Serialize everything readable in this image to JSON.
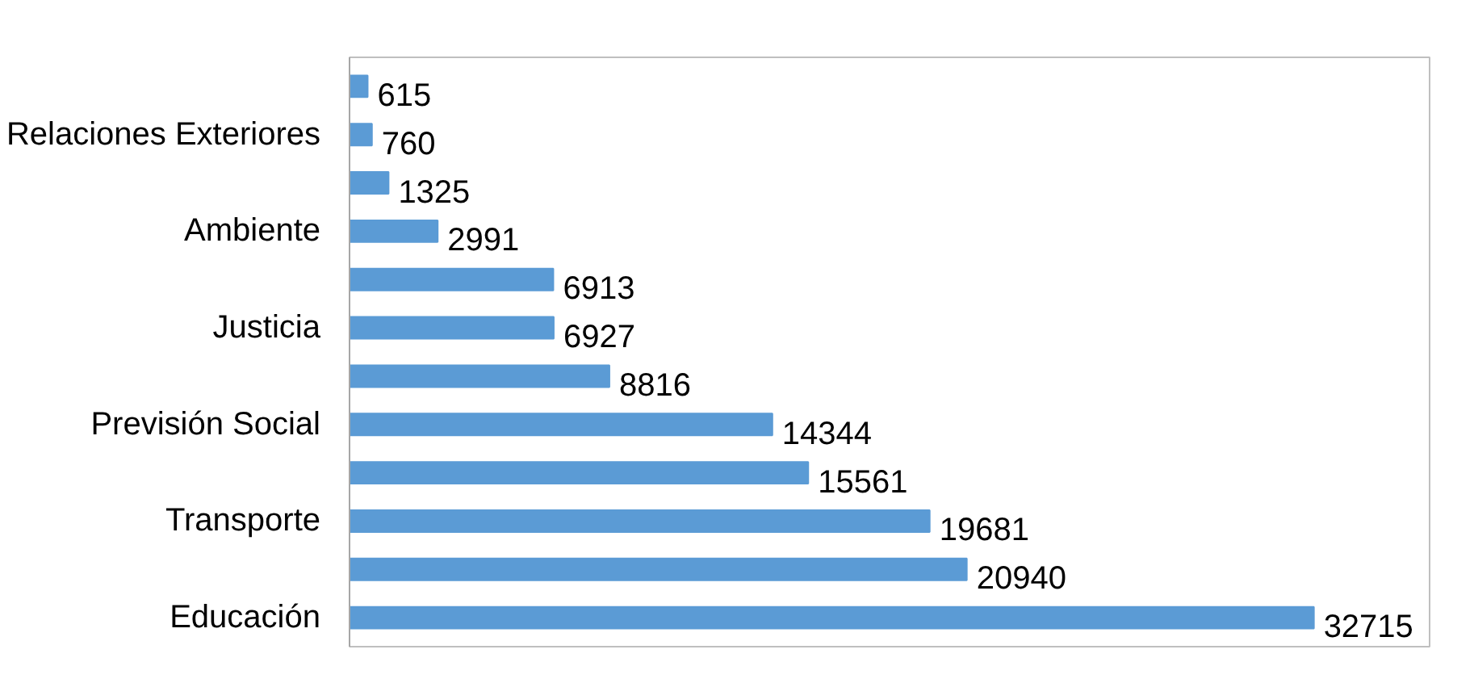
{
  "chart_data": {
    "type": "bar",
    "orientation": "horizontal",
    "categories": [
      null,
      "Relaciones Exteriores",
      null,
      "Ambiente",
      null,
      "Justicia",
      null,
      "Previsión Social",
      null,
      "Transporte",
      null,
      "Educación"
    ],
    "values": [
      615,
      760,
      1325,
      2991,
      6913,
      6927,
      8816,
      14344,
      15561,
      19681,
      20940,
      32715
    ],
    "color": "#5b9bd5",
    "data_labels": true,
    "grid": false
  }
}
